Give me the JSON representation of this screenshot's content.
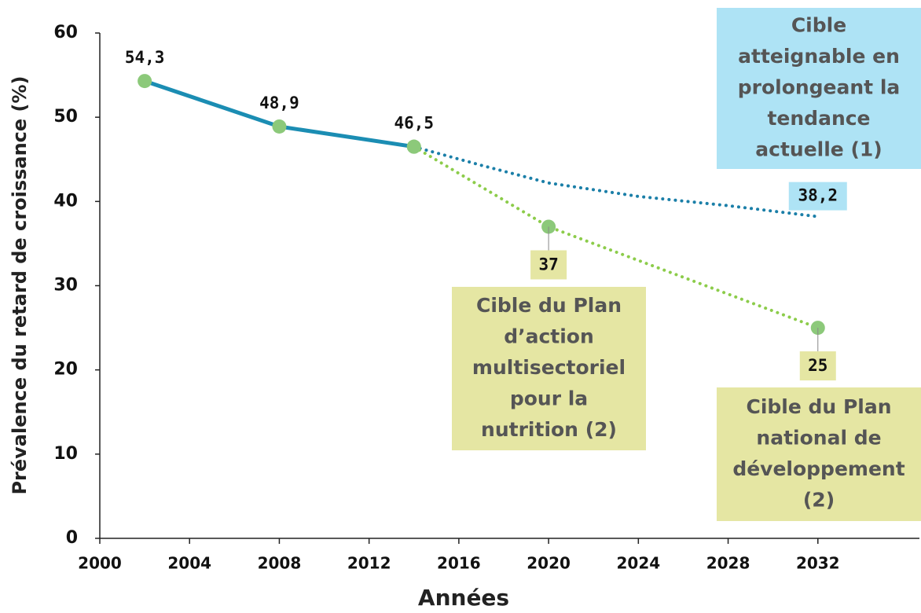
{
  "chart_data": {
    "type": "line",
    "xlabel": "Années",
    "ylabel": "Prévalence du retard de croissance (%)",
    "x": [
      2002,
      2008,
      2014,
      2017,
      2020,
      2024,
      2028,
      2032
    ],
    "series": [
      {
        "color": "#1b8db3",
        "style": "solid",
        "markers": true,
        "values": [
          54.3,
          48.9,
          46.5,
          null,
          null,
          null,
          null,
          null
        ],
        "value_labels": [
          "54,3",
          "48,9",
          "46,5",
          null,
          null,
          null,
          null,
          null
        ]
      },
      {
        "color": "#1b7fa8",
        "style": "dotted",
        "markers": false,
        "label_fill": "#aee3f5",
        "values": [
          null,
          null,
          46.5,
          44.3,
          42.2,
          40.6,
          39.5,
          38.2
        ],
        "value_labels": [
          null,
          null,
          null,
          null,
          null,
          null,
          null,
          "38,2"
        ]
      },
      {
        "color": "#8ccc4a",
        "style": "dotted",
        "markers": true,
        "label_fill": "#e5e6a3",
        "values": [
          null,
          null,
          46.5,
          null,
          37,
          null,
          null,
          25
        ],
        "value_labels": [
          null,
          null,
          null,
          null,
          "37",
          null,
          null,
          "25"
        ]
      }
    ],
    "marker_color": "#8cc97a",
    "xlim": [
      2000,
      2036
    ],
    "xticks": [
      2000,
      2004,
      2008,
      2012,
      2016,
      2020,
      2024,
      2028,
      2032
    ],
    "ylim": [
      0,
      60
    ],
    "yticks": [
      0,
      10,
      20,
      30,
      40,
      50,
      60
    ],
    "annotations": [
      {
        "lines": [
          "Cible",
          "atteignable en",
          "prolongeant la",
          "tendance",
          "actuelle (1)"
        ],
        "fill": "#aee3f5"
      },
      {
        "lines": [
          "Cible du Plan",
          "d’action",
          "multisectoriel",
          "pour la",
          "nutrition (2)"
        ],
        "fill": "#e5e6a3"
      },
      {
        "lines": [
          "Cible du Plan",
          "national de",
          "développement",
          "(2)"
        ],
        "fill": "#e5e6a3"
      }
    ]
  }
}
